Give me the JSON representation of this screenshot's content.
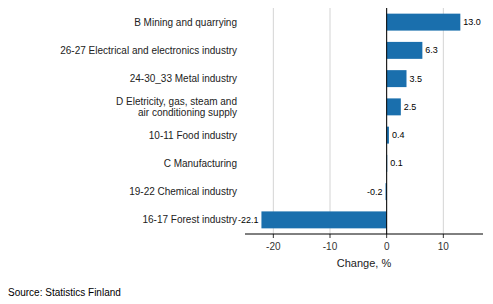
{
  "chart_data": {
    "type": "bar",
    "orientation": "horizontal",
    "categories": [
      "16-17 Forest industry",
      "19-22 Chemical industry",
      "C Manufacturing",
      "10-11 Food industry",
      "D Eletricity, gas, steam and\nair conditioning supply",
      "24-30_33 Metal industry",
      "26-27 Electrical and electronics industry",
      "B Mining and quarrying"
    ],
    "values": [
      -22.1,
      -0.2,
      0.1,
      0.4,
      2.5,
      3.5,
      6.3,
      13.0
    ],
    "value_labels": [
      "-22.1",
      "-0.2",
      "0.1",
      "0.4",
      "2.5",
      "3.5",
      "6.3",
      "13.0"
    ],
    "data_labels": true,
    "color": "#1a6fad",
    "xlabel": "Change, %",
    "annotations": [
      "Source: Statistics Finland"
    ],
    "xlim": [
      -25,
      17
    ],
    "xticks": [
      -20,
      -10,
      0,
      10
    ],
    "grid": true
  }
}
